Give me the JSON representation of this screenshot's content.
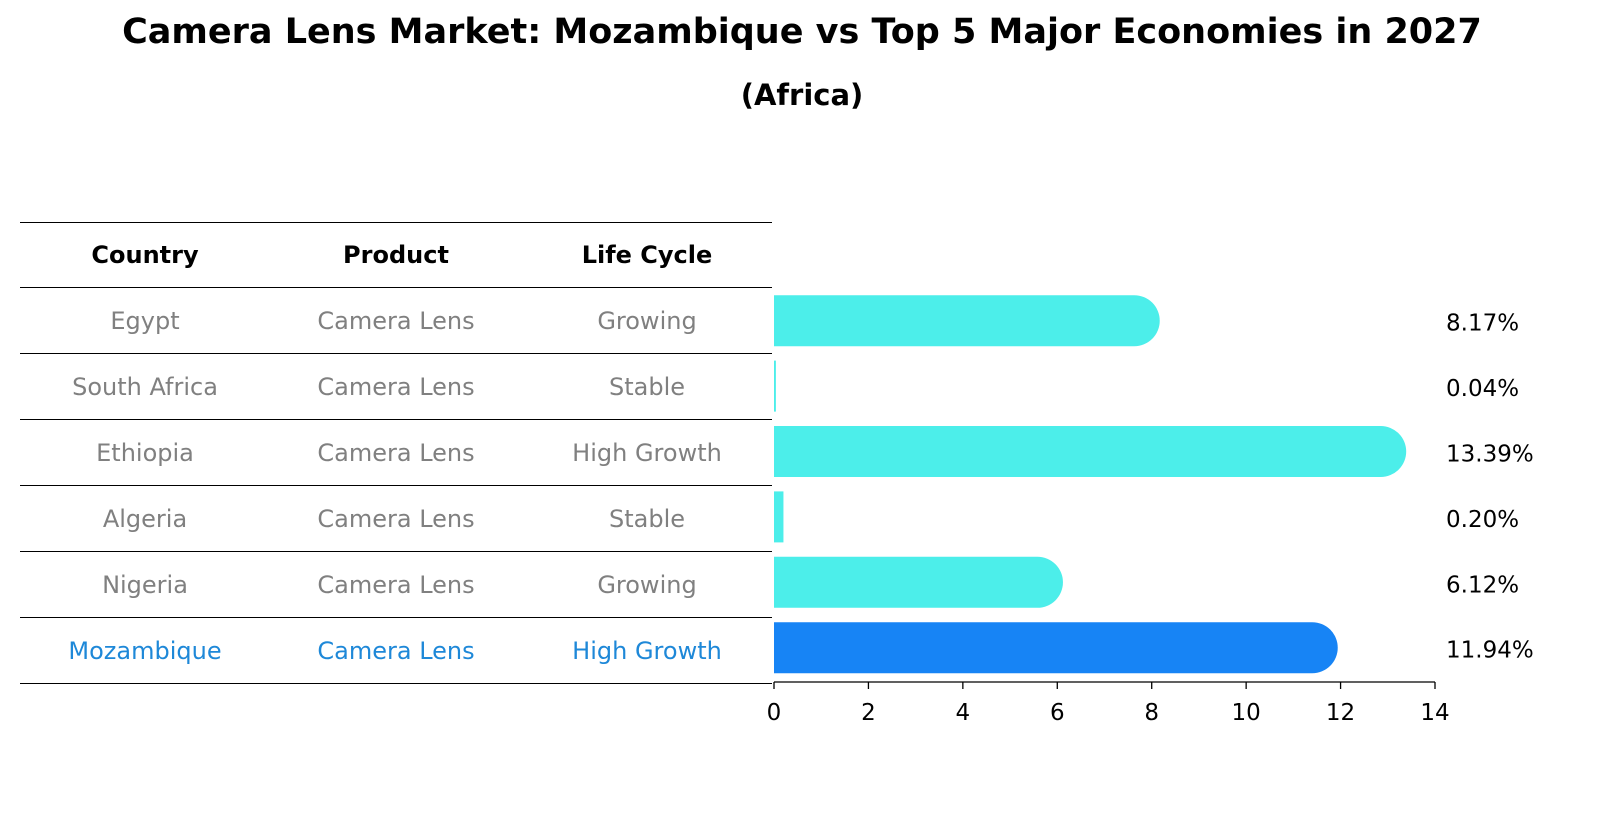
{
  "chart_data": {
    "type": "bar",
    "title": "Camera Lens Market: Mozambique vs Top 5 Major Economies in 2027",
    "subtitle": "(Africa)",
    "categories": [
      "Egypt",
      "South Africa",
      "Ethiopia",
      "Algeria",
      "Nigeria",
      "Mozambique"
    ],
    "values": [
      8.17,
      0.04,
      13.39,
      0.2,
      6.12,
      11.94
    ],
    "value_labels": [
      "8.17%",
      "0.04%",
      "13.39%",
      "0.20%",
      "6.12%",
      "11.94%"
    ],
    "xlim": [
      0,
      14
    ],
    "x_ticks": [
      "0",
      "2",
      "4",
      "6",
      "8",
      "10",
      "12",
      "14"
    ],
    "colors": {
      "default_bar": "#4ceeea",
      "highlight_bar": "#1784f5",
      "highlight_text": "#1e88d8",
      "muted_text": "#808080"
    },
    "highlight": "Mozambique",
    "grid": false,
    "orientation": "horizontal"
  },
  "table": {
    "headers": [
      "Country",
      "Product",
      "Life Cycle"
    ],
    "rows": [
      {
        "country": "Egypt",
        "product": "Camera Lens",
        "life_cycle": "Growing"
      },
      {
        "country": "South Africa",
        "product": "Camera Lens",
        "life_cycle": "Stable"
      },
      {
        "country": "Ethiopia",
        "product": "Camera Lens",
        "life_cycle": "High Growth"
      },
      {
        "country": "Algeria",
        "product": "Camera Lens",
        "life_cycle": "Stable"
      },
      {
        "country": "Nigeria",
        "product": "Camera Lens",
        "life_cycle": "Growing"
      },
      {
        "country": "Mozambique",
        "product": "Camera Lens",
        "life_cycle": "High Growth"
      }
    ]
  }
}
